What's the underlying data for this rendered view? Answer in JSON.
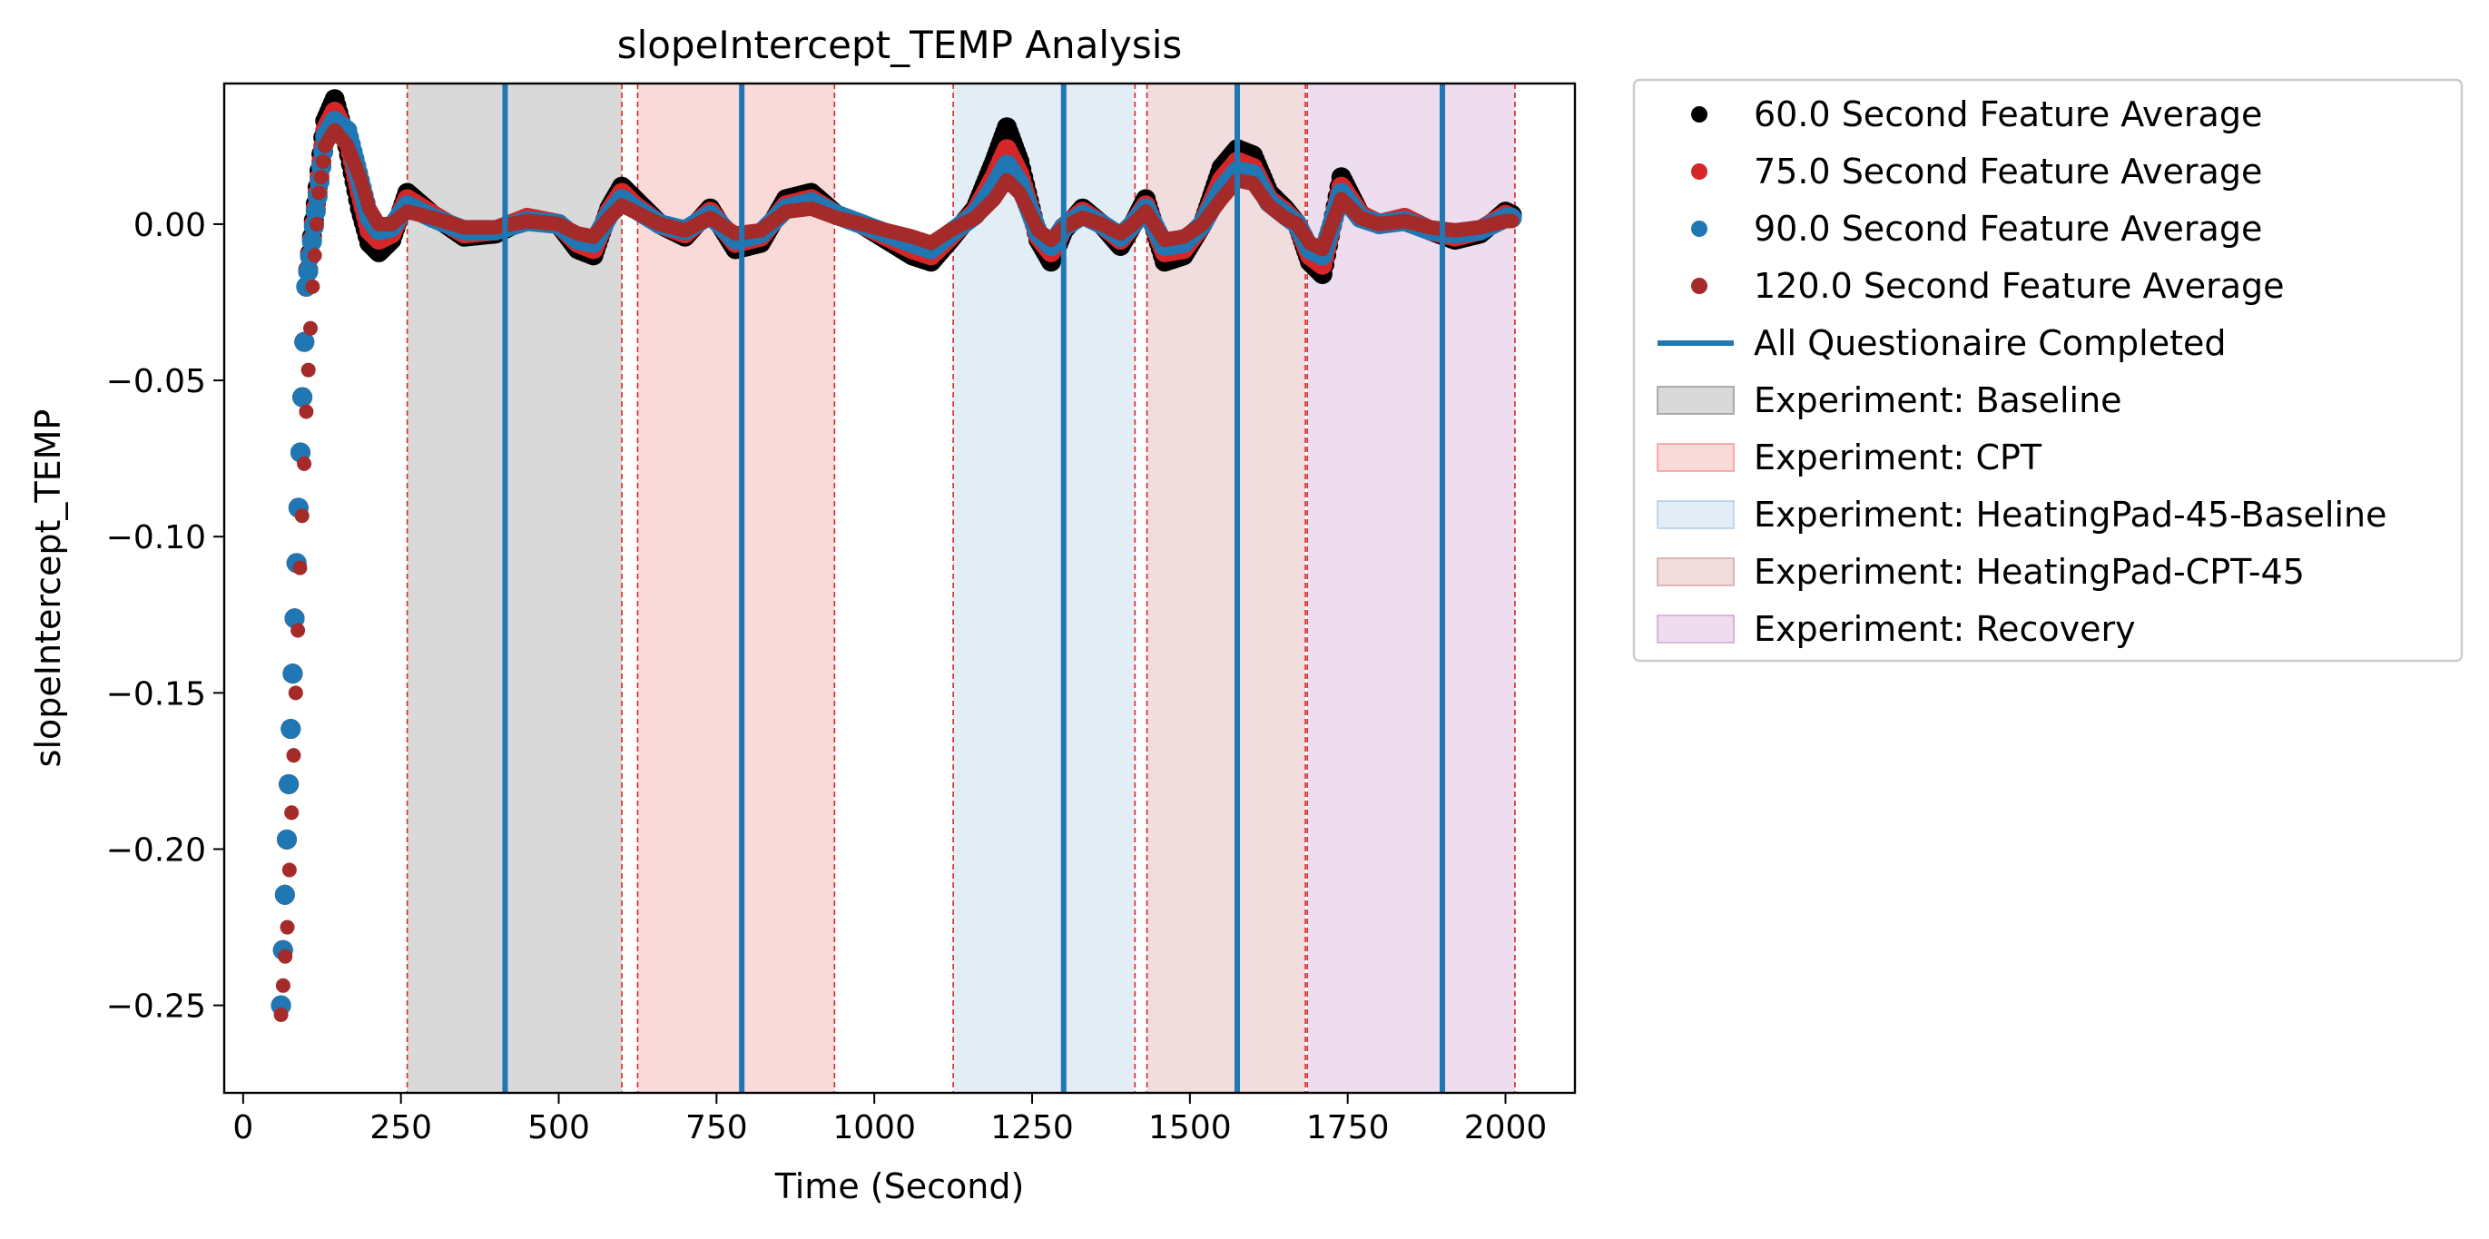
{
  "chart_data": {
    "type": "scatter",
    "title": "slopeIntercept_TEMP Analysis",
    "xlabel": "Time (Second)",
    "ylabel": "slopeIntercept_TEMP",
    "xlim": [
      -30,
      2110
    ],
    "ylim": [
      -0.278,
      0.045
    ],
    "xticks": [
      0,
      250,
      500,
      750,
      1000,
      1250,
      1500,
      1750,
      2000
    ],
    "xtick_labels": [
      "0",
      "250",
      "500",
      "750",
      "1000",
      "1250",
      "1500",
      "1750",
      "2000"
    ],
    "yticks": [
      0.0,
      -0.05,
      -0.1,
      -0.15,
      -0.2,
      -0.25
    ],
    "ytick_labels": [
      "0.00",
      "−0.05",
      "−0.10",
      "−0.15",
      "−0.20",
      "−0.25"
    ],
    "grid": false,
    "legend_position": "outside-right-top",
    "series": [
      {
        "name": "60.0 Second Feature Average",
        "color": "#000000",
        "x": [
          60,
          100,
          130,
          145,
          165,
          185,
          200,
          215,
          235,
          260,
          300,
          350,
          400,
          450,
          500,
          530,
          555,
          580,
          600,
          620,
          660,
          700,
          740,
          780,
          820,
          860,
          900,
          940,
          980,
          1020,
          1060,
          1090,
          1120,
          1160,
          1190,
          1210,
          1230,
          1260,
          1280,
          1300,
          1330,
          1360,
          1390,
          1410,
          1430,
          1460,
          1490,
          1520,
          1550,
          1575,
          1600,
          1625,
          1650,
          1670,
          1690,
          1710,
          1740,
          1770,
          1800,
          1840,
          1880,
          1920,
          1960,
          2000,
          2010
        ],
        "y": [
          -0.25,
          -0.02,
          0.033,
          0.04,
          0.025,
          0.005,
          -0.006,
          -0.009,
          -0.005,
          0.01,
          0.003,
          -0.004,
          -0.003,
          0.002,
          0.0,
          -0.008,
          -0.01,
          0.005,
          0.012,
          0.008,
          0.0,
          -0.004,
          0.005,
          -0.008,
          -0.006,
          0.008,
          0.01,
          0.003,
          0.0,
          -0.005,
          -0.01,
          -0.012,
          -0.005,
          0.005,
          0.02,
          0.031,
          0.02,
          -0.005,
          -0.012,
          -0.002,
          0.005,
          0.0,
          -0.007,
          0.0,
          0.008,
          -0.012,
          -0.01,
          0.0,
          0.018,
          0.024,
          0.022,
          0.01,
          0.005,
          0.0,
          -0.012,
          -0.016,
          0.015,
          0.003,
          0.0,
          0.002,
          -0.002,
          -0.005,
          -0.003,
          0.004,
          0.003
        ]
      },
      {
        "name": "75.0 Second Feature Average",
        "color": "#d62728",
        "x": [
          60,
          100,
          130,
          145,
          165,
          185,
          200,
          215,
          235,
          260,
          300,
          350,
          400,
          450,
          500,
          530,
          555,
          580,
          600,
          620,
          660,
          700,
          740,
          780,
          820,
          860,
          900,
          940,
          980,
          1020,
          1060,
          1090,
          1120,
          1160,
          1190,
          1210,
          1230,
          1260,
          1280,
          1300,
          1330,
          1360,
          1390,
          1410,
          1430,
          1460,
          1490,
          1520,
          1550,
          1575,
          1600,
          1625,
          1650,
          1670,
          1690,
          1710,
          1740,
          1770,
          1800,
          1840,
          1880,
          1920,
          1960,
          2000,
          2010
        ],
        "y": [
          -0.25,
          -0.02,
          0.03,
          0.036,
          0.028,
          0.01,
          -0.002,
          -0.005,
          -0.003,
          0.008,
          0.003,
          -0.003,
          -0.002,
          0.002,
          0.0,
          -0.006,
          -0.008,
          0.004,
          0.01,
          0.006,
          0.0,
          -0.003,
          0.004,
          -0.006,
          -0.004,
          0.006,
          0.008,
          0.003,
          0.0,
          -0.004,
          -0.008,
          -0.01,
          -0.004,
          0.004,
          0.015,
          0.024,
          0.016,
          -0.004,
          -0.009,
          -0.001,
          0.004,
          0.0,
          -0.005,
          0.0,
          0.006,
          -0.009,
          -0.008,
          0.0,
          0.014,
          0.02,
          0.018,
          0.008,
          0.004,
          0.0,
          -0.01,
          -0.013,
          0.012,
          0.003,
          0.0,
          0.002,
          -0.002,
          -0.004,
          -0.002,
          0.003,
          0.002
        ]
      },
      {
        "name": "90.0 Second Feature Average",
        "color": "#1f77b4",
        "x": [
          60,
          100,
          130,
          145,
          165,
          185,
          200,
          215,
          235,
          260,
          300,
          350,
          400,
          450,
          500,
          530,
          555,
          580,
          600,
          620,
          660,
          700,
          740,
          780,
          820,
          860,
          900,
          940,
          980,
          1020,
          1060,
          1090,
          1120,
          1160,
          1190,
          1210,
          1230,
          1260,
          1280,
          1300,
          1330,
          1360,
          1390,
          1410,
          1430,
          1460,
          1490,
          1520,
          1550,
          1575,
          1600,
          1625,
          1650,
          1670,
          1690,
          1710,
          1740,
          1770,
          1800,
          1840,
          1880,
          1920,
          1960,
          2000,
          2010
        ],
        "y": [
          -0.25,
          -0.02,
          0.028,
          0.033,
          0.03,
          0.014,
          0.002,
          -0.002,
          -0.001,
          0.006,
          0.002,
          -0.002,
          -0.002,
          0.001,
          0.0,
          -0.005,
          -0.006,
          0.003,
          0.008,
          0.005,
          0.0,
          -0.002,
          0.003,
          -0.005,
          -0.003,
          0.005,
          0.007,
          0.003,
          0.0,
          -0.003,
          -0.006,
          -0.008,
          -0.003,
          0.003,
          0.012,
          0.019,
          0.013,
          -0.003,
          -0.007,
          -0.001,
          0.003,
          0.0,
          -0.004,
          0.0,
          0.005,
          -0.007,
          -0.006,
          0.0,
          0.011,
          0.017,
          0.016,
          0.007,
          0.003,
          0.0,
          -0.008,
          -0.01,
          0.01,
          0.002,
          0.0,
          0.001,
          -0.002,
          -0.003,
          -0.002,
          0.002,
          0.002
        ]
      },
      {
        "name": "120.0 Second Feature Average",
        "color": "#a52a2a",
        "x": [
          60,
          70,
          80,
          90,
          100,
          110,
          120,
          130,
          145,
          165,
          185,
          200,
          215,
          235,
          260,
          300,
          350,
          400,
          450,
          500,
          530,
          555,
          580,
          600,
          620,
          660,
          700,
          740,
          780,
          820,
          860,
          900,
          940,
          980,
          1020,
          1060,
          1090,
          1120,
          1160,
          1190,
          1210,
          1230,
          1260,
          1280,
          1300,
          1330,
          1360,
          1390,
          1410,
          1430,
          1460,
          1490,
          1520,
          1550,
          1575,
          1600,
          1625,
          1650,
          1670,
          1690,
          1710,
          1740,
          1770,
          1800,
          1840,
          1880,
          1920,
          1960,
          2000,
          2010
        ],
        "y": [
          -0.253,
          -0.225,
          -0.17,
          -0.11,
          -0.06,
          -0.02,
          0.01,
          0.025,
          0.03,
          0.025,
          0.015,
          0.005,
          0.0,
          0.0,
          0.004,
          0.002,
          -0.001,
          -0.001,
          0.001,
          0.0,
          -0.003,
          -0.004,
          0.002,
          0.006,
          0.004,
          0.0,
          -0.002,
          0.002,
          -0.003,
          -0.002,
          0.004,
          0.005,
          0.002,
          0.0,
          -0.002,
          -0.004,
          -0.006,
          -0.002,
          0.002,
          0.008,
          0.014,
          0.01,
          -0.002,
          -0.005,
          -0.001,
          0.002,
          0.0,
          -0.003,
          0.0,
          0.004,
          -0.005,
          -0.004,
          0.0,
          0.008,
          0.014,
          0.013,
          0.006,
          0.002,
          0.0,
          -0.006,
          -0.008,
          0.008,
          0.002,
          0.0,
          0.001,
          -0.001,
          -0.002,
          -0.001,
          0.001,
          0.001
        ]
      }
    ],
    "questionnaire": {
      "name": "All Questionaire Completed",
      "color": "#1f77b4",
      "x": [
        415,
        790,
        1300,
        1575,
        1900
      ]
    },
    "experiments": [
      {
        "name": "Experiment: Baseline",
        "color": "#808080",
        "start": 260,
        "end": 600
      },
      {
        "name": "Experiment: CPT",
        "color": "#f08080",
        "start": 625,
        "end": 937
      },
      {
        "name": "Experiment: HeatingPad-45-Baseline",
        "color": "#9ec3e0",
        "start": 1125,
        "end": 1413
      },
      {
        "name": "Experiment: HeatingPad-CPT-45",
        "color": "#d09090",
        "start": 1432,
        "end": 1683
      },
      {
        "name": "Experiment: Recovery",
        "color": "#c890c8",
        "start": 1686,
        "end": 2015
      }
    ]
  }
}
